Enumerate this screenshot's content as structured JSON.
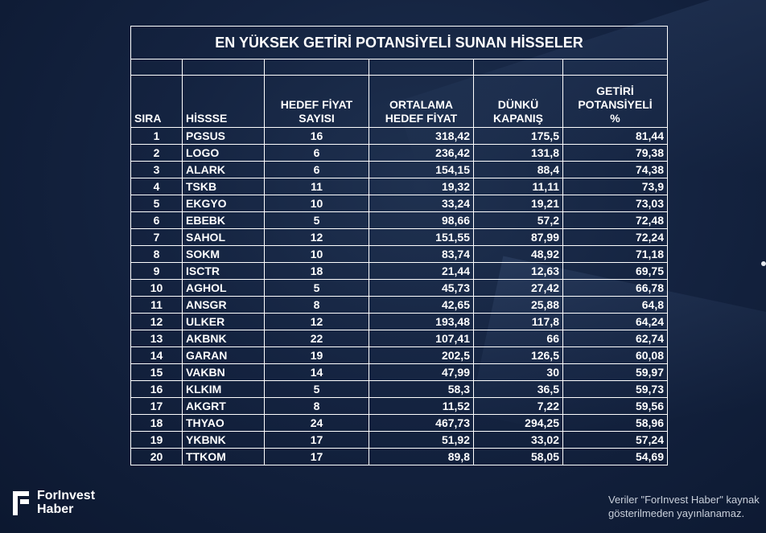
{
  "title": "EN YÜKSEK GETİRİ POTANSİYELİ SUNAN HİSSELER",
  "headers": {
    "sira": "SIRA",
    "hisse": "HİSSSE",
    "hedef_fiyat_sayisi": [
      "HEDEF FİYAT",
      "SAYISI"
    ],
    "ortalama_hedef_fiyat": [
      "ORTALAMA",
      "HEDEF FİYAT"
    ],
    "dunku_kapanis": [
      "DÜNKÜ",
      "KAPANIŞ"
    ],
    "getiri_potansiyeli": [
      "GETİRİ",
      "POTANSİYELİ",
      "%"
    ]
  },
  "rows": [
    [
      "1",
      "PGSUS",
      "16",
      "318,42",
      "175,5",
      "81,44"
    ],
    [
      "2",
      "LOGO",
      "6",
      "236,42",
      "131,8",
      "79,38"
    ],
    [
      "3",
      "ALARK",
      "6",
      "154,15",
      "88,4",
      "74,38"
    ],
    [
      "4",
      "TSKB",
      "11",
      "19,32",
      "11,11",
      "73,9"
    ],
    [
      "5",
      "EKGYO",
      "10",
      "33,24",
      "19,21",
      "73,03"
    ],
    [
      "6",
      "EBEBK",
      "5",
      "98,66",
      "57,2",
      "72,48"
    ],
    [
      "7",
      "SAHOL",
      "12",
      "151,55",
      "87,99",
      "72,24"
    ],
    [
      "8",
      "SOKM",
      "10",
      "83,74",
      "48,92",
      "71,18"
    ],
    [
      "9",
      "ISCTR",
      "18",
      "21,44",
      "12,63",
      "69,75"
    ],
    [
      "10",
      "AGHOL",
      "5",
      "45,73",
      "27,42",
      "66,78"
    ],
    [
      "11",
      "ANSGR",
      "8",
      "42,65",
      "25,88",
      "64,8"
    ],
    [
      "12",
      "ULKER",
      "12",
      "193,48",
      "117,8",
      "64,24"
    ],
    [
      "13",
      "AKBNK",
      "22",
      "107,41",
      "66",
      "62,74"
    ],
    [
      "14",
      "GARAN",
      "19",
      "202,5",
      "126,5",
      "60,08"
    ],
    [
      "15",
      "VAKBN",
      "14",
      "47,99",
      "30",
      "59,97"
    ],
    [
      "16",
      "KLKIM",
      "5",
      "58,3",
      "36,5",
      "59,73"
    ],
    [
      "17",
      "AKGRT",
      "8",
      "11,52",
      "7,22",
      "59,56"
    ],
    [
      "18",
      "THYAO",
      "24",
      "467,73",
      "294,25",
      "58,96"
    ],
    [
      "19",
      "YKBNK",
      "17",
      "51,92",
      "33,02",
      "57,24"
    ],
    [
      "20",
      "TTKOM",
      "17",
      "89,8",
      "58,05",
      "54,69"
    ]
  ],
  "logo": {
    "line1": "ForInvest",
    "line2": "Haber"
  },
  "disclaimer": {
    "line1": "Veriler \"ForInvest Haber\" kaynak",
    "line2": "gösterilmeden yayınlanamaz."
  }
}
